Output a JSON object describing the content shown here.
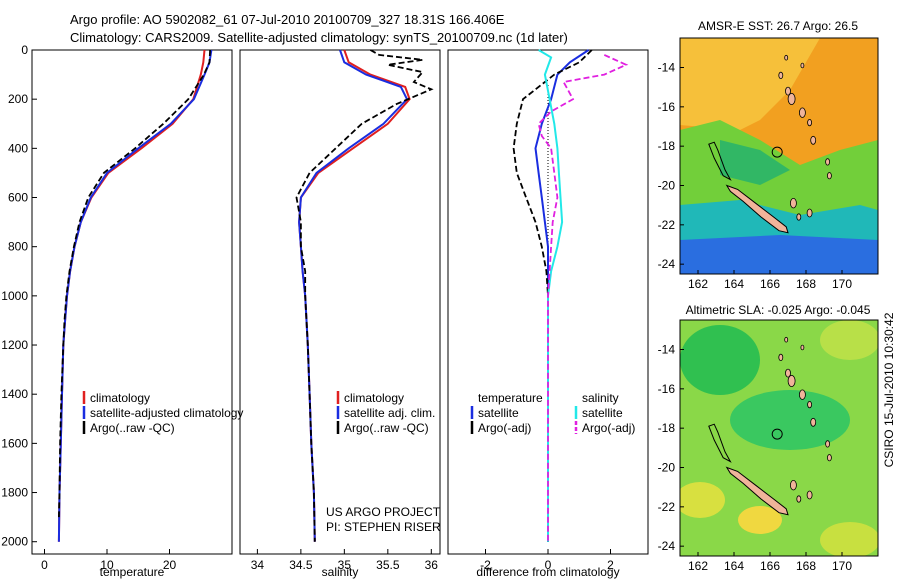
{
  "header": {
    "line1": "Argo profile: AO 5902082_61 07-Jul-2010 20100709_327 18.31S 166.406E",
    "line2": "Climatology: CARS2009. Satellite-adjusted climatology: synTS_20100709.nc (1d later)"
  },
  "colors": {
    "climatology": "#e02020",
    "satellite": "#1a2de0",
    "argo": "#000000",
    "salinity_satellite": "#22e8e8",
    "salinity_argo": "#e020e0",
    "land": "#f0b49a"
  },
  "chart_data": [
    {
      "type": "line",
      "name": "temperature",
      "xlabel": "temperature",
      "ylabel": "",
      "xlim": [
        -2,
        30
      ],
      "ylim": [
        2050,
        0
      ],
      "xticks": [
        0,
        10,
        20
      ],
      "yticks": [
        0,
        200,
        400,
        600,
        800,
        1000,
        1200,
        1400,
        1600,
        1800,
        2000
      ],
      "legend": [
        "climatology",
        "satellite-adjusted climatology",
        "Argo(..raw -QC)"
      ],
      "series": [
        {
          "name": "climatology",
          "points": [
            [
              25.6,
              0
            ],
            [
              25.4,
              50
            ],
            [
              25.0,
              100
            ],
            [
              23.8,
              200
            ],
            [
              20.5,
              300
            ],
            [
              15.5,
              400
            ],
            [
              10.2,
              500
            ],
            [
              7.5,
              600
            ],
            [
              5.8,
              700
            ],
            [
              4.8,
              800
            ],
            [
              4.1,
              900
            ],
            [
              3.6,
              1000
            ],
            [
              3.3,
              1100
            ],
            [
              3.0,
              1200
            ],
            [
              2.8,
              1400
            ],
            [
              2.6,
              1600
            ],
            [
              2.4,
              1800
            ],
            [
              2.3,
              2000
            ]
          ]
        },
        {
          "name": "satellite-adjusted climatology",
          "points": [
            [
              26.7,
              0
            ],
            [
              26.4,
              50
            ],
            [
              25.6,
              100
            ],
            [
              23.9,
              200
            ],
            [
              20.2,
              300
            ],
            [
              15.0,
              400
            ],
            [
              10.0,
              500
            ],
            [
              7.4,
              600
            ],
            [
              5.8,
              700
            ],
            [
              4.8,
              800
            ],
            [
              4.1,
              900
            ],
            [
              3.6,
              1000
            ],
            [
              3.3,
              1100
            ],
            [
              3.0,
              1200
            ],
            [
              2.8,
              1400
            ],
            [
              2.6,
              1600
            ],
            [
              2.4,
              1800
            ],
            [
              2.3,
              2000
            ]
          ]
        },
        {
          "name": "Argo(..raw -QC)",
          "points": [
            [
              26.5,
              0
            ],
            [
              26.4,
              50
            ],
            [
              25.5,
              100
            ],
            [
              23.0,
              200
            ],
            [
              19.0,
              300
            ],
            [
              14.5,
              400
            ],
            [
              9.5,
              500
            ],
            [
              7.0,
              600
            ],
            [
              5.6,
              700
            ],
            [
              4.7,
              800
            ],
            [
              4.0,
              900
            ],
            [
              3.5,
              1000
            ],
            [
              3.2,
              1100
            ],
            [
              3.0,
              1200
            ],
            [
              2.7,
              1400
            ],
            [
              2.5,
              1600
            ],
            [
              2.4,
              1800
            ],
            [
              2.3,
              1900
            ]
          ]
        }
      ]
    },
    {
      "type": "line",
      "name": "salinity",
      "xlabel": "salinity",
      "xlim": [
        33.8,
        36.1
      ],
      "ylim": [
        2050,
        0
      ],
      "xticks": [
        34,
        34.5,
        35,
        35.5,
        36
      ],
      "legend": [
        "climatology",
        "satellite adj. clim.",
        "Argo(..raw -QC)"
      ],
      "series": [
        {
          "name": "climatology",
          "points": [
            [
              35.0,
              0
            ],
            [
              35.05,
              50
            ],
            [
              35.3,
              100
            ],
            [
              35.7,
              150
            ],
            [
              35.75,
              200
            ],
            [
              35.5,
              300
            ],
            [
              35.1,
              400
            ],
            [
              34.7,
              500
            ],
            [
              34.5,
              600
            ],
            [
              34.48,
              700
            ],
            [
              34.5,
              800
            ],
            [
              34.52,
              900
            ],
            [
              34.55,
              1000
            ],
            [
              34.58,
              1200
            ],
            [
              34.6,
              1400
            ],
            [
              34.62,
              1600
            ],
            [
              34.65,
              1800
            ],
            [
              34.66,
              2000
            ]
          ]
        },
        {
          "name": "satellite adj. clim.",
          "points": [
            [
              34.95,
              0
            ],
            [
              35.0,
              50
            ],
            [
              35.25,
              100
            ],
            [
              35.65,
              150
            ],
            [
              35.72,
              200
            ],
            [
              35.45,
              300
            ],
            [
              35.05,
              400
            ],
            [
              34.68,
              500
            ],
            [
              34.5,
              600
            ],
            [
              34.48,
              700
            ],
            [
              34.5,
              800
            ],
            [
              34.52,
              900
            ],
            [
              34.55,
              1000
            ],
            [
              34.58,
              1200
            ],
            [
              34.6,
              1400
            ],
            [
              34.62,
              1600
            ],
            [
              34.65,
              1800
            ],
            [
              34.66,
              2000
            ]
          ]
        },
        {
          "name": "Argo(..raw -QC)",
          "points": [
            [
              35.3,
              0
            ],
            [
              35.4,
              20
            ],
            [
              35.9,
              40
            ],
            [
              35.5,
              60
            ],
            [
              35.9,
              90
            ],
            [
              35.8,
              130
            ],
            [
              36.0,
              160
            ],
            [
              35.6,
              220
            ],
            [
              35.2,
              300
            ],
            [
              34.9,
              400
            ],
            [
              34.6,
              500
            ],
            [
              34.45,
              600
            ],
            [
              34.5,
              700
            ],
            [
              34.5,
              800
            ],
            [
              34.55,
              900
            ],
            [
              34.55,
              1000
            ],
            [
              34.58,
              1200
            ],
            [
              34.6,
              1400
            ],
            [
              34.62,
              1600
            ],
            [
              34.65,
              1800
            ],
            [
              34.66,
              2000
            ]
          ]
        }
      ]
    },
    {
      "type": "line",
      "name": "difference",
      "xlabel": "difference from climatology",
      "xlim": [
        -3.2,
        3.2
      ],
      "ylim": [
        2050,
        0
      ],
      "xticks": [
        -2,
        0,
        2
      ],
      "legend_left_title": "temperature",
      "legend_right_title": "salinity",
      "legend": [
        "satellite",
        "Argo(-adj)",
        "satellite",
        "Argo(-adj)"
      ],
      "series": [
        {
          "name": "temperature satellite",
          "points": [
            [
              1.3,
              0
            ],
            [
              0.7,
              50
            ],
            [
              0.3,
              100
            ],
            [
              0.1,
              200
            ],
            [
              -0.2,
              300
            ],
            [
              -0.4,
              400
            ],
            [
              -0.3,
              500
            ],
            [
              -0.2,
              600
            ],
            [
              -0.1,
              700
            ],
            [
              0,
              800
            ],
            [
              0,
              1000
            ],
            [
              0,
              1200
            ],
            [
              0,
              1500
            ],
            [
              0,
              2000
            ]
          ]
        },
        {
          "name": "temperature Argo(-adj)",
          "points": [
            [
              1.4,
              0
            ],
            [
              1.0,
              50
            ],
            [
              0.2,
              100
            ],
            [
              -0.8,
              200
            ],
            [
              -1.0,
              300
            ],
            [
              -1.1,
              400
            ],
            [
              -1.0,
              500
            ],
            [
              -0.7,
              600
            ],
            [
              -0.4,
              700
            ],
            [
              -0.2,
              800
            ],
            [
              -0.05,
              900
            ],
            [
              0,
              1000
            ],
            [
              0,
              2000
            ]
          ]
        },
        {
          "name": "salinity satellite",
          "points": [
            [
              -0.3,
              0
            ],
            [
              0.1,
              30
            ],
            [
              -0.1,
              100
            ],
            [
              0.05,
              200
            ],
            [
              0.2,
              300
            ],
            [
              0.3,
              400
            ],
            [
              0.35,
              500
            ],
            [
              0.4,
              600
            ],
            [
              0.45,
              700
            ],
            [
              0.3,
              800
            ],
            [
              0.1,
              900
            ],
            [
              0,
              1000
            ],
            [
              0,
              2000
            ]
          ]
        },
        {
          "name": "salinity Argo(-adj)",
          "points": [
            [
              1.8,
              20
            ],
            [
              2.5,
              60
            ],
            [
              1.8,
              100
            ],
            [
              0.5,
              130
            ],
            [
              0.8,
              200
            ],
            [
              0.1,
              250
            ],
            [
              -0.3,
              300
            ],
            [
              -0.2,
              350
            ],
            [
              0.1,
              400
            ],
            [
              0.2,
              500
            ],
            [
              0.3,
              600
            ],
            [
              0.15,
              700
            ],
            [
              0.1,
              800
            ],
            [
              0.05,
              900
            ],
            [
              0,
              1000
            ],
            [
              0,
              2000
            ]
          ]
        }
      ]
    },
    {
      "type": "heatmap",
      "name": "sst_map",
      "title": "AMSR-E SST: 26.7  Argo: 26.5",
      "xlim": [
        161,
        172
      ],
      "ylim": [
        -24.5,
        -12.5
      ],
      "xticks": [
        162,
        164,
        166,
        168,
        170
      ],
      "yticks": [
        -14,
        -16,
        -18,
        -20,
        -22,
        -24
      ],
      "profile_location": [
        166.4,
        -18.3
      ]
    },
    {
      "type": "heatmap",
      "name": "sla_map",
      "title": "Altimetric SLA: -0.025  Argo: -0.045",
      "xlim": [
        161,
        172
      ],
      "ylim": [
        -24.5,
        -12.5
      ],
      "xticks": [
        162,
        164,
        166,
        168,
        170
      ],
      "yticks": [
        -14,
        -16,
        -18,
        -20,
        -22,
        -24
      ],
      "profile_location": [
        166.4,
        -18.3
      ]
    }
  ],
  "footer": {
    "project_line1": "US ARGO PROJECT",
    "project_line2": "PI: STEPHEN RISER",
    "credit": "CSIRO 15-Jul-2010 10:30:42"
  }
}
